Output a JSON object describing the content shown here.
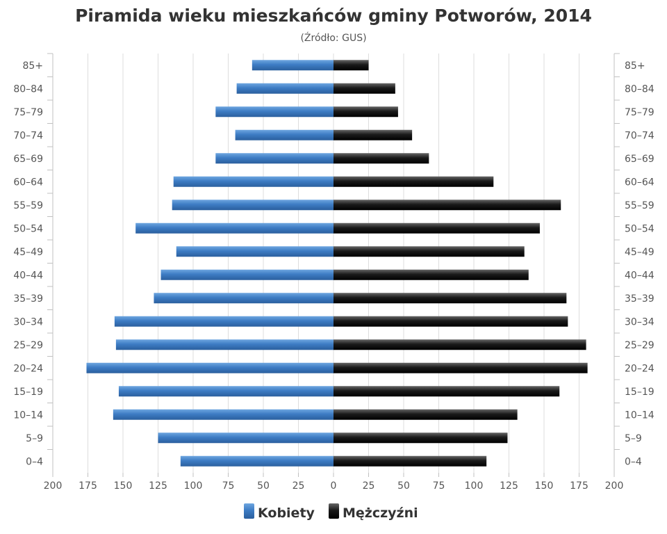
{
  "chart_data": {
    "type": "bar",
    "orientation": "horizontal-population-pyramid",
    "title": "Piramida wieku mieszkańców gminy Potworów, 2014",
    "subtitle": "(Źródło: GUS)",
    "categories": [
      "85+",
      "80–84",
      "75–79",
      "70–74",
      "65–69",
      "60–64",
      "55–59",
      "50–54",
      "45–49",
      "40–44",
      "35–39",
      "30–34",
      "25–29",
      "20–24",
      "15–19",
      "10–14",
      "5–9",
      "0–4"
    ],
    "series": [
      {
        "name": "Kobiety",
        "color": "#3d7cc4",
        "side": "left",
        "values": [
          58,
          69,
          84,
          70,
          84,
          114,
          115,
          141,
          112,
          123,
          128,
          156,
          155,
          176,
          153,
          157,
          125,
          109
        ]
      },
      {
        "name": "Mężczyźni",
        "color": "#1a1a1a",
        "side": "right",
        "values": [
          25,
          44,
          46,
          56,
          68,
          114,
          162,
          147,
          136,
          139,
          166,
          167,
          180,
          181,
          161,
          131,
          124,
          109
        ]
      }
    ],
    "xlim": [
      -200,
      200
    ],
    "xticks": [
      200,
      175,
      150,
      125,
      100,
      75,
      50,
      25,
      0,
      25,
      50,
      75,
      100,
      125,
      150,
      175,
      200
    ],
    "grid": true,
    "legend_position": "bottom-center"
  }
}
